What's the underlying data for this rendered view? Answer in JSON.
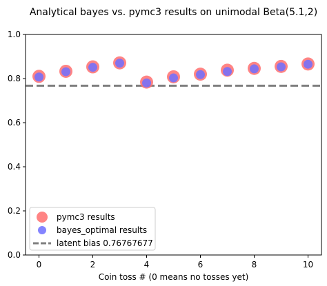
{
  "chart_data": {
    "type": "scatter",
    "title": "Analytical bayes vs. pymc3 results on unimodal Beta(5.1,2)",
    "xlabel": "Coin toss # (0 means no tosses yet)",
    "ylabel": "",
    "xlim": [
      -0.5,
      10.5
    ],
    "ylim": [
      0.0,
      1.0
    ],
    "xticks": [
      "0",
      "2",
      "4",
      "6",
      "8",
      "10"
    ],
    "yticks": [
      "0.0",
      "0.2",
      "0.4",
      "0.6",
      "0.8",
      "1.0"
    ],
    "grid": false,
    "legend_position": "lower-left",
    "x": [
      0,
      1,
      2,
      3,
      4,
      5,
      6,
      7,
      8,
      9,
      10
    ],
    "series": [
      {
        "name": "pymc3 results",
        "color": "#ff6f6f",
        "marker": "large-circle",
        "values": [
          0.81,
          0.833,
          0.853,
          0.871,
          0.784,
          0.808,
          0.82,
          0.838,
          0.846,
          0.855,
          0.866
        ]
      },
      {
        "name": "bayes_optimal results",
        "color": "#6f6fff",
        "marker": "circle",
        "values": [
          0.807,
          0.831,
          0.851,
          0.87,
          0.78,
          0.803,
          0.818,
          0.832,
          0.844,
          0.853,
          0.865
        ]
      }
    ],
    "reference_line": {
      "name": "latent bias 0.76767677",
      "value": 0.76767677,
      "color": "#7f7f7f",
      "style": "dashed"
    }
  }
}
